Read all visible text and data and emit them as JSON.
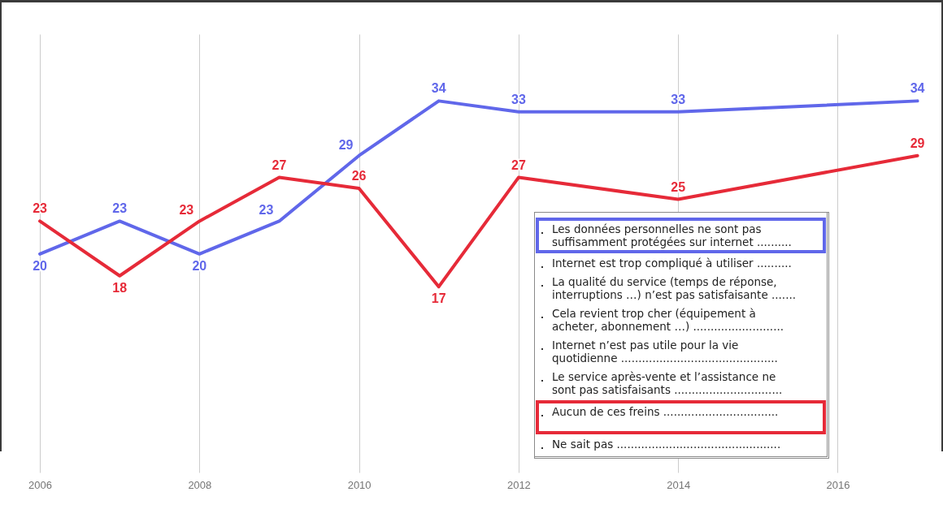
{
  "chart_data": {
    "type": "line",
    "x": [
      2006,
      2007,
      2008,
      2009,
      2010,
      2011,
      2012,
      2014,
      2017
    ],
    "xlim": [
      2005.5,
      2017.3
    ],
    "xticks": [
      2006,
      2008,
      2010,
      2012,
      2014,
      2016
    ],
    "series": [
      {
        "name": "Les données personnelles ne sont pas suffisamment protégées sur internet ..........",
        "color": "#6067ea",
        "values": [
          20,
          23,
          20,
          23,
          29,
          34,
          33,
          33,
          34
        ]
      },
      {
        "name": "Aucun de ces freins .................................",
        "color": "#e62a38",
        "values": [
          23,
          18,
          23,
          27,
          26,
          17,
          27,
          25,
          29
        ]
      }
    ],
    "annotations": [
      "Internet est trop compliqué à utiliser ..........",
      "La qualité du service (temps de réponse, interruptions …) n’est pas satisfaisante .......",
      "Cela revient trop cher (équipement à acheter, abonnement …) ..........................",
      "Internet n’est pas utile pour la vie quotidienne .............................................",
      "Le service après-vente et l’assistance ne sont pas satisfaisants ...............................",
      "Ne sait pas ..............................................."
    ],
    "data_labels": true,
    "grid": "x",
    "legend": "bottom right"
  }
}
